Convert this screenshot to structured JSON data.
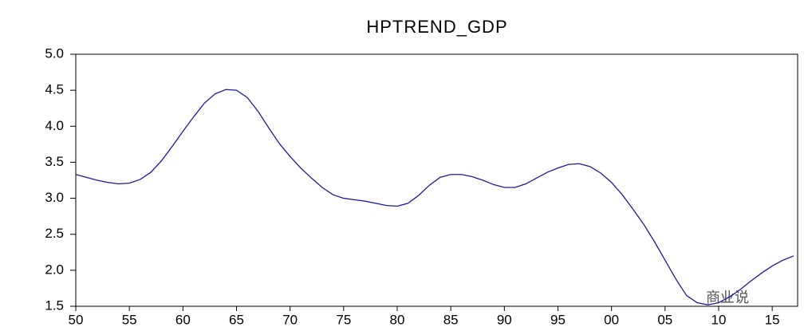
{
  "chart_data": {
    "type": "line",
    "title": "HPTREND_GDP",
    "annotation": "商业说",
    "x": [
      1950,
      1951,
      1952,
      1953,
      1954,
      1955,
      1956,
      1957,
      1958,
      1959,
      1960,
      1961,
      1962,
      1963,
      1964,
      1965,
      1966,
      1967,
      1968,
      1969,
      1970,
      1971,
      1972,
      1973,
      1974,
      1975,
      1976,
      1977,
      1978,
      1979,
      1980,
      1981,
      1982,
      1983,
      1984,
      1985,
      1986,
      1987,
      1988,
      1989,
      1990,
      1991,
      1992,
      1993,
      1994,
      1995,
      1996,
      1997,
      1998,
      1999,
      2000,
      2001,
      2002,
      2003,
      2004,
      2005,
      2006,
      2007,
      2008,
      2009,
      2010,
      2011,
      2012,
      2013,
      2014,
      2015,
      2016,
      2017
    ],
    "series": [
      {
        "name": "HPTREND_GDP",
        "color": "#1a1a9c",
        "values": [
          3.33,
          3.29,
          3.25,
          3.22,
          3.2,
          3.21,
          3.26,
          3.36,
          3.52,
          3.72,
          3.93,
          4.13,
          4.32,
          4.45,
          4.51,
          4.5,
          4.4,
          4.21,
          3.98,
          3.76,
          3.58,
          3.42,
          3.28,
          3.15,
          3.05,
          3.0,
          2.98,
          2.96,
          2.93,
          2.9,
          2.89,
          2.93,
          3.04,
          3.18,
          3.29,
          3.33,
          3.33,
          3.3,
          3.25,
          3.19,
          3.15,
          3.15,
          3.2,
          3.28,
          3.36,
          3.42,
          3.47,
          3.48,
          3.44,
          3.35,
          3.22,
          3.05,
          2.85,
          2.64,
          2.4,
          2.14,
          1.88,
          1.65,
          1.55,
          1.52,
          1.55,
          1.63,
          1.73,
          1.85,
          1.96,
          2.06,
          2.14,
          2.2
        ]
      }
    ],
    "xlim": [
      1950,
      2017
    ],
    "xticks": [
      {
        "value": 1950,
        "label": "50"
      },
      {
        "value": 1955,
        "label": "55"
      },
      {
        "value": 1960,
        "label": "60"
      },
      {
        "value": 1965,
        "label": "65"
      },
      {
        "value": 1970,
        "label": "70"
      },
      {
        "value": 1975,
        "label": "75"
      },
      {
        "value": 1980,
        "label": "80"
      },
      {
        "value": 1985,
        "label": "85"
      },
      {
        "value": 1990,
        "label": "90"
      },
      {
        "value": 1995,
        "label": "95"
      },
      {
        "value": 2000,
        "label": "00"
      },
      {
        "value": 2005,
        "label": "05"
      },
      {
        "value": 2010,
        "label": "10"
      },
      {
        "value": 2015,
        "label": "15"
      }
    ],
    "ylim": [
      1.5,
      5.0
    ],
    "yticks": [
      {
        "value": 1.5,
        "label": "1.5"
      },
      {
        "value": 2.0,
        "label": "2.0"
      },
      {
        "value": 2.5,
        "label": "2.5"
      },
      {
        "value": 3.0,
        "label": "3.0"
      },
      {
        "value": 3.5,
        "label": "3.5"
      },
      {
        "value": 4.0,
        "label": "4.0"
      },
      {
        "value": 4.5,
        "label": "4.5"
      },
      {
        "value": 5.0,
        "label": "5.0"
      }
    ],
    "grid": false
  }
}
